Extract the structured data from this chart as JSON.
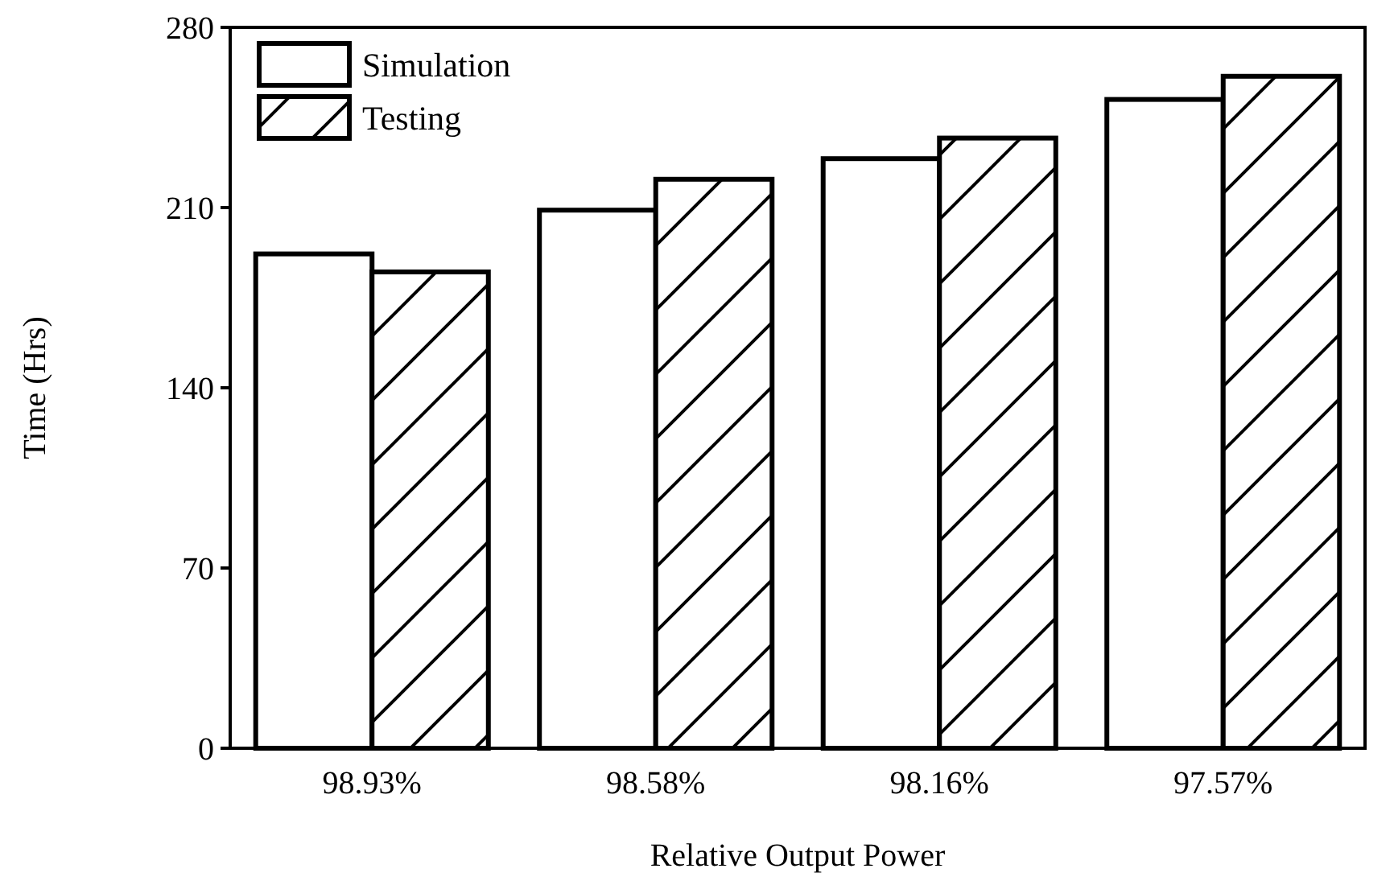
{
  "chart_data": {
    "type": "bar",
    "xlabel": "Relative Output Power",
    "ylabel": "Time (Hrs)",
    "categories": [
      "98.93%",
      "98.58%",
      "98.16%",
      "97.57%"
    ],
    "series": [
      {
        "name": "Simulation",
        "color": "#ffffff",
        "values": [
          192,
          209,
          229,
          252
        ]
      },
      {
        "name": "Testing",
        "color": "#000000",
        "values": [
          185,
          221,
          237,
          261
        ]
      }
    ],
    "ylim": [
      0,
      280
    ],
    "yticks": [
      0,
      70,
      140,
      210,
      280
    ],
    "grid": false,
    "legend": "top left"
  }
}
